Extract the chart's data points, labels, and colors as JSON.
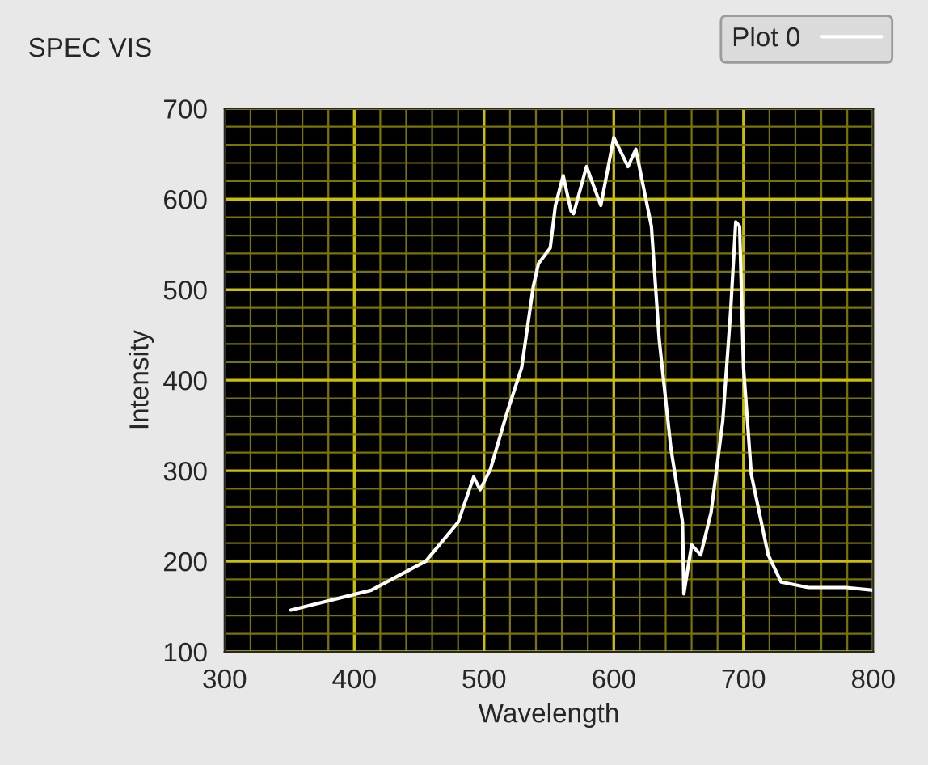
{
  "chart_data": {
    "type": "line",
    "title": "SPEC VIS",
    "xlabel": "Wavelength",
    "ylabel": "Intensity",
    "x": [
      351,
      413,
      455,
      480,
      492,
      497,
      505,
      517,
      529,
      538,
      542,
      551,
      555,
      561,
      567,
      569,
      579,
      590,
      600,
      611,
      617,
      629,
      635,
      644,
      653,
      654,
      660,
      667,
      675,
      684,
      690,
      694,
      697,
      700,
      706,
      719,
      729,
      750,
      779,
      800
    ],
    "series": [
      {
        "name": "Plot 0",
        "color": "#ffffff",
        "values": [
          146,
          168,
          200,
          243,
          293,
          279,
          302,
          361,
          414,
          504,
          529,
          546,
          593,
          626,
          587,
          584,
          636,
          593,
          668,
          636,
          655,
          570,
          445,
          325,
          243,
          164,
          218,
          207,
          254,
          355,
          475,
          575,
          570,
          414,
          296,
          207,
          177,
          171,
          171,
          168
        ]
      }
    ],
    "xlim": [
      300,
      800
    ],
    "xticks": [
      300,
      {
        "value": 320,
        "label": null
      },
      {
        "value": 340,
        "label": null
      },
      {
        "value": 360,
        "label": null
      },
      {
        "value": 380,
        "label": null
      },
      400,
      {
        "value": 420,
        "label": null
      },
      {
        "value": 440,
        "label": null
      },
      {
        "value": 460,
        "label": null
      },
      {
        "value": 480,
        "label": null
      },
      500,
      {
        "value": 520,
        "label": null
      },
      {
        "value": 540,
        "label": null
      },
      {
        "value": 560,
        "label": null
      },
      {
        "value": 580,
        "label": null
      },
      600,
      {
        "value": 620,
        "label": null
      },
      {
        "value": 640,
        "label": null
      },
      {
        "value": 660,
        "label": null
      },
      {
        "value": 680,
        "label": null
      },
      700,
      {
        "value": 720,
        "label": null
      },
      {
        "value": 740,
        "label": null
      },
      {
        "value": 760,
        "label": null
      },
      {
        "value": 780,
        "label": null
      },
      800
    ],
    "ylim": [
      100,
      700
    ],
    "yticks": [
      100,
      {
        "value": 120,
        "label": null
      },
      {
        "value": 140,
        "label": null
      },
      {
        "value": 160,
        "label": null
      },
      {
        "value": 180,
        "label": null
      },
      200,
      {
        "value": 220,
        "label": null
      },
      {
        "value": 240,
        "label": null
      },
      {
        "value": 260,
        "label": null
      },
      {
        "value": 280,
        "label": null
      },
      300,
      {
        "value": 320,
        "label": null
      },
      {
        "value": 340,
        "label": null
      },
      {
        "value": 360,
        "label": null
      },
      {
        "value": 380,
        "label": null
      },
      400,
      {
        "value": 420,
        "label": null
      },
      {
        "value": 440,
        "label": null
      },
      {
        "value": 460,
        "label": null
      },
      {
        "value": 480,
        "label": null
      },
      500,
      {
        "value": 520,
        "label": null
      },
      {
        "value": 540,
        "label": null
      },
      {
        "value": 560,
        "label": null
      },
      {
        "value": 580,
        "label": null
      },
      600,
      {
        "value": 620,
        "label": null
      },
      {
        "value": 640,
        "label": null
      },
      {
        "value": 660,
        "label": null
      },
      {
        "value": 680,
        "label": null
      },
      700
    ],
    "grid": true,
    "legend": "top right",
    "line_style": "solid",
    "marker": "none"
  }
}
